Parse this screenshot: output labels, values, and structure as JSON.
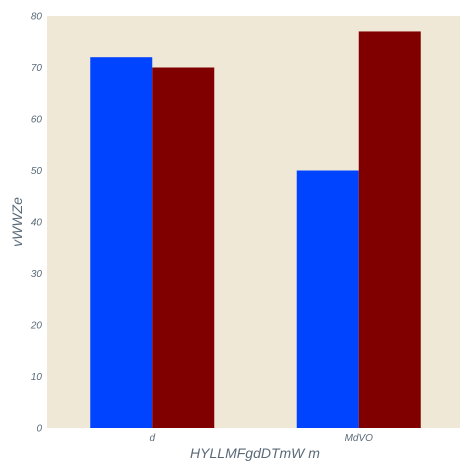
{
  "chart_data": {
    "type": "bar",
    "title": "",
    "xlabel": "HYLLMFgdDTmW m",
    "ylabel": "vWWZe",
    "categories": [
      "d",
      "MdVO"
    ],
    "series": [
      {
        "values": [
          72,
          50
        ],
        "color": "#0044ff"
      },
      {
        "values": [
          70,
          77
        ],
        "color": "#800000"
      }
    ],
    "ylim": [
      0,
      80
    ],
    "yticks": [
      "0",
      "10",
      "20",
      "30",
      "40",
      "50",
      "60",
      "70",
      "80"
    ],
    "grid": false,
    "legend": false,
    "background_color": "#efe8d6"
  }
}
